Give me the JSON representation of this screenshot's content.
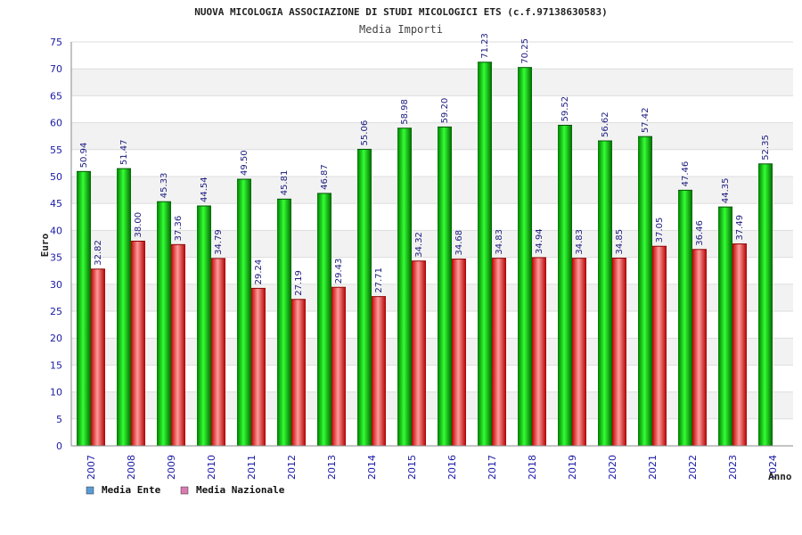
{
  "chart_data": {
    "type": "bar",
    "title": "NUOVA MICOLOGIA ASSOCIAZIONE DI STUDI MICOLOGICI ETS (c.f.97138630583)",
    "subtitle": "Media Importi",
    "xlabel": "Anno",
    "ylabel": "Euro",
    "ylim": [
      0,
      75
    ],
    "yticks": [
      0,
      5,
      10,
      15,
      20,
      25,
      30,
      35,
      40,
      45,
      50,
      55,
      60,
      65,
      70,
      75
    ],
    "grid": true,
    "legend_placement": "bottom-left",
    "categories": [
      "2007",
      "2008",
      "2009",
      "2010",
      "2011",
      "2012",
      "2013",
      "2014",
      "2015",
      "2016",
      "2017",
      "2018",
      "2019",
      "2020",
      "2021",
      "2022",
      "2023",
      "2024"
    ],
    "series": [
      {
        "name": "Media Ente",
        "color": "#00c000",
        "legend_color": "#5b9bd5",
        "values": [
          50.94,
          51.47,
          45.33,
          44.54,
          49.5,
          45.81,
          46.87,
          55.06,
          58.98,
          59.2,
          71.23,
          70.25,
          59.52,
          56.62,
          57.42,
          47.46,
          44.35,
          52.35
        ],
        "labels": [
          "50.94",
          "51.47",
          "45.33",
          "44.54",
          "49.50",
          "45.81",
          "46.87",
          "55.06",
          "58.98",
          "59.20",
          "71.23",
          "70.25",
          "59.52",
          "56.62",
          "57.42",
          "47.46",
          "44.35",
          "52.35"
        ]
      },
      {
        "name": "Media Nazionale",
        "color": "#e01818",
        "legend_color": "#d97bb0",
        "values": [
          32.82,
          38.0,
          37.36,
          34.79,
          29.24,
          27.19,
          29.43,
          27.71,
          34.32,
          34.68,
          34.83,
          34.94,
          34.83,
          34.85,
          37.05,
          36.46,
          37.49,
          null
        ],
        "labels": [
          "32.82",
          "38.00",
          "37.36",
          "34.79",
          "29.24",
          "27.19",
          "29.43",
          "27.71",
          "34.32",
          "34.68",
          "34.83",
          "34.94",
          "34.83",
          "34.85",
          "37.05",
          "36.46",
          "37.49",
          ""
        ]
      }
    ]
  }
}
